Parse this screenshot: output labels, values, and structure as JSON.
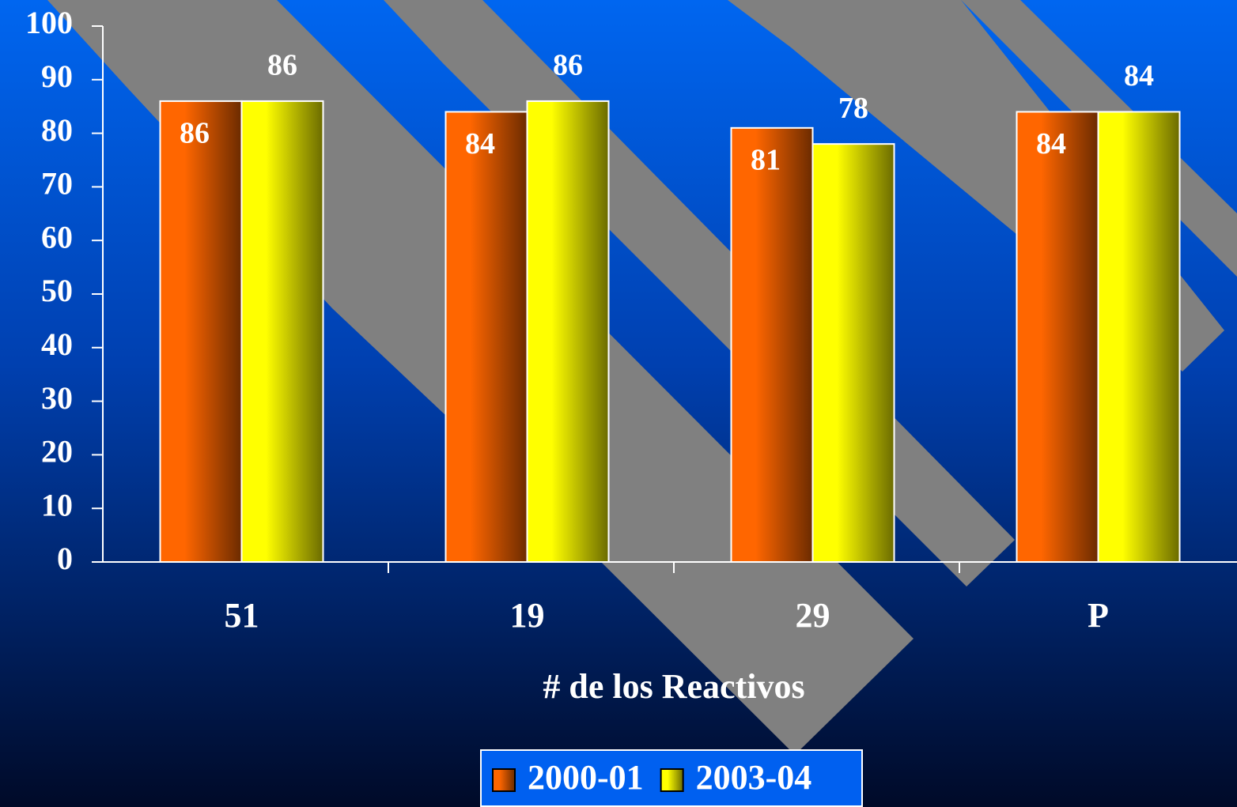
{
  "chart_data": {
    "type": "bar",
    "x_label": "# de los Reactivos",
    "categories": [
      "51",
      "19",
      "29",
      "P"
    ],
    "series": [
      {
        "name": "2000-01",
        "color": "#ff6600",
        "values": [
          86,
          84,
          81,
          84
        ]
      },
      {
        "name": "2003-04",
        "color": "#ffff00",
        "values": [
          86,
          86,
          78,
          84
        ]
      }
    ],
    "ylim": [
      0,
      100
    ],
    "yticks": [
      0,
      10,
      20,
      30,
      40,
      50,
      60,
      70,
      80,
      90,
      100
    ],
    "legend": "bottom"
  }
}
